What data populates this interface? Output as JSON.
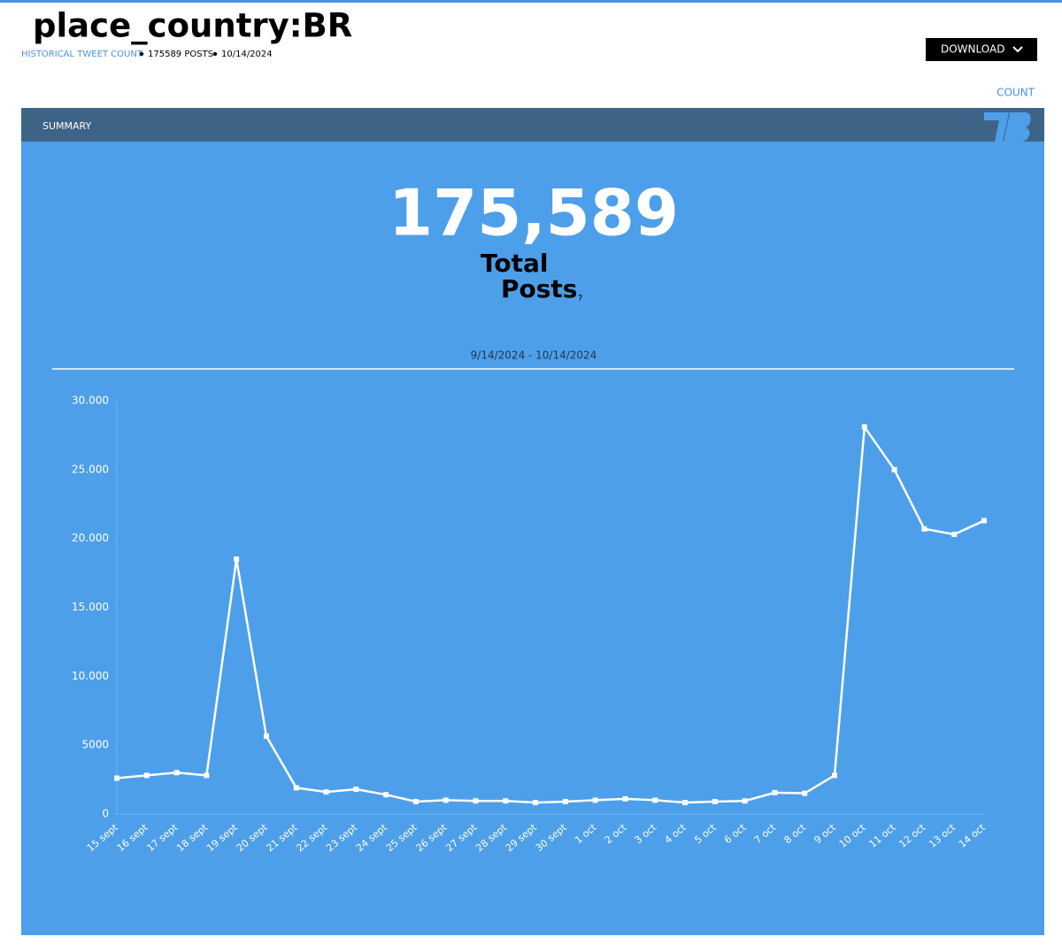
{
  "header": {
    "title": "place_country:BR",
    "breadcrumb": "HISTORICAL TWEET COUNT",
    "posts": "175589 POSTS",
    "date": "10/14/2024",
    "download": "DOWNLOAD",
    "count": "COUNT"
  },
  "summary": {
    "label": "SUMMARY",
    "total": "175,589",
    "total_word": "Total",
    "posts_word": "Posts",
    "help": "?",
    "range": "9/14/2024 - 10/14/2024"
  },
  "chart_data": {
    "type": "line",
    "color": "#ffffff",
    "categories": [
      "15 sept",
      "16 sept",
      "17 sept",
      "18 sept",
      "19 sept",
      "20 sept",
      "21 sept",
      "22 sept",
      "23 sept",
      "24 sept",
      "25 sept",
      "26 sept",
      "27 sept",
      "28 sept",
      "29 sept",
      "30 sept",
      "1 oct",
      "2 oct",
      "3 oct",
      "4 oct",
      "5 oct",
      "6 oct",
      "7 oct",
      "8 oct",
      "9 oct",
      "10 oct",
      "11 oct",
      "12 oct",
      "13 oct",
      "14 oct"
    ],
    "values": [
      2600,
      2800,
      3000,
      2800,
      18500,
      5650,
      1900,
      1600,
      1800,
      1400,
      900,
      1000,
      950,
      950,
      830,
      900,
      1000,
      1100,
      1000,
      830,
      900,
      950,
      1550,
      1500,
      2800,
      28100,
      25000,
      20700,
      20300,
      21300
    ],
    "ylim": [
      0,
      30000
    ],
    "yticks": [
      0,
      5000,
      {
        "value": 10000,
        "label": "10.000"
      },
      {
        "value": 15000,
        "label": "15.000"
      },
      {
        "value": 20000,
        "label": "20.000"
      },
      {
        "value": 25000,
        "label": "25.000"
      },
      {
        "value": 30000,
        "label": "30.000"
      }
    ]
  }
}
